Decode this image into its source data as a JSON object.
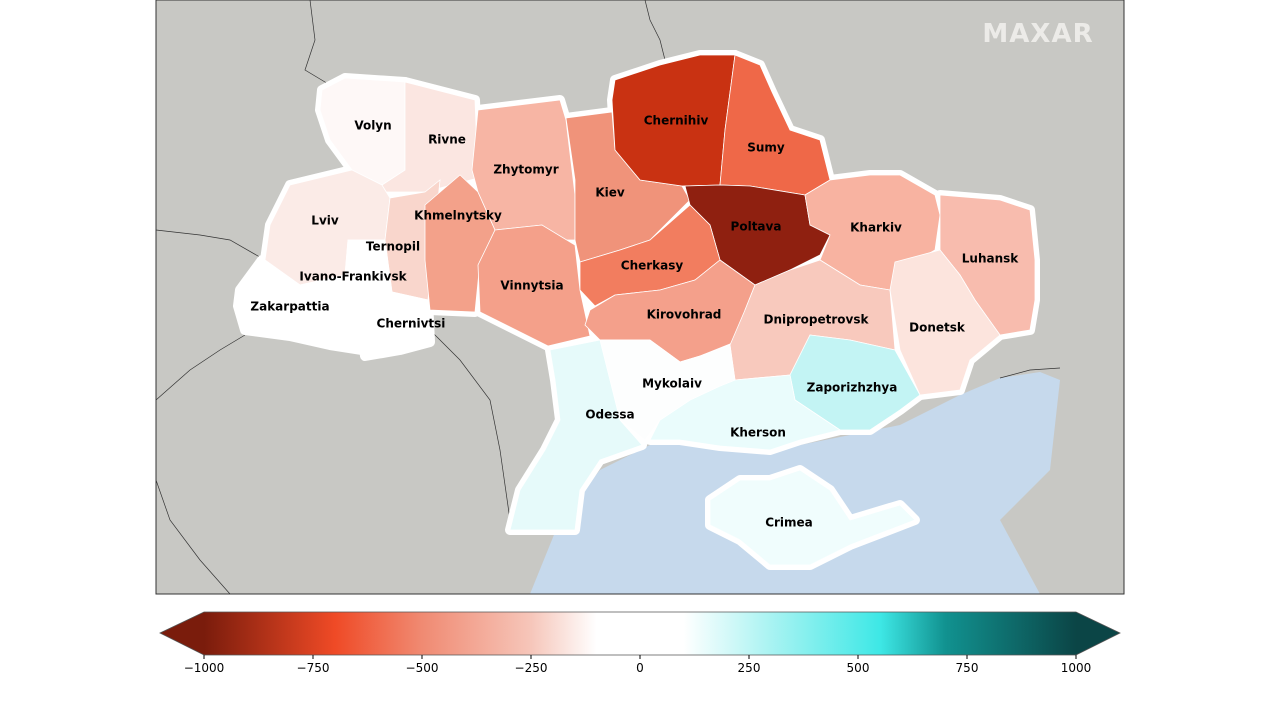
{
  "logo": "MAXAR",
  "colors": {
    "land": "#c8c8c4",
    "sea": "#c6d9ec",
    "border": "#ffffff"
  },
  "regions": [
    {
      "name": "Volyn",
      "value": -40,
      "color": "#fef8f7"
    },
    {
      "name": "Rivne",
      "value": -130,
      "color": "#fbe6e1"
    },
    {
      "name": "Lviv",
      "value": -110,
      "color": "#fbebe7"
    },
    {
      "name": "Ternopil",
      "value": -230,
      "color": "#f9d6cc"
    },
    {
      "name": "Ivano-Frankivsk",
      "value": 0,
      "color": "#ffffff"
    },
    {
      "name": "Zakarpattia",
      "value": 0,
      "color": "#ffffff"
    },
    {
      "name": "Chernivtsi",
      "value": 0,
      "color": "#ffffff"
    },
    {
      "name": "Khmelnytsky",
      "value": -450,
      "color": "#f3a18a"
    },
    {
      "name": "Zhytomyr",
      "value": -380,
      "color": "#f7b5a4"
    },
    {
      "name": "Vinnytsia",
      "value": -450,
      "color": "#f4a08a"
    },
    {
      "name": "Kiev",
      "value": -480,
      "color": "#f0937a"
    },
    {
      "name": "Chernihiv",
      "value": -800,
      "color": "#c93212"
    },
    {
      "name": "Sumy",
      "value": -650,
      "color": "#ef6848"
    },
    {
      "name": "Poltava",
      "value": -950,
      "color": "#8f2010"
    },
    {
      "name": "Cherkasy",
      "value": -550,
      "color": "#f27d5f"
    },
    {
      "name": "Kirovohrad",
      "value": -440,
      "color": "#f4a08b"
    },
    {
      "name": "Kharkiv",
      "value": -380,
      "color": "#f8b3a1"
    },
    {
      "name": "Luhansk",
      "value": -330,
      "color": "#f8bcae"
    },
    {
      "name": "Dnipropetrovsk",
      "value": -280,
      "color": "#f8c9bd"
    },
    {
      "name": "Donetsk",
      "value": -150,
      "color": "#fce4dd"
    },
    {
      "name": "Zaporizhzhya",
      "value": 300,
      "color": "#c3f4f4"
    },
    {
      "name": "Kherson",
      "value": 120,
      "color": "#eafcfc"
    },
    {
      "name": "Mykolaiv",
      "value": 20,
      "color": "#fdfefe"
    },
    {
      "name": "Odessa",
      "value": 150,
      "color": "#e6fafa"
    },
    {
      "name": "Crimea",
      "value": 80,
      "color": "#f0fdfd"
    }
  ],
  "colorbar": {
    "range": [
      -1000,
      1000
    ],
    "ticks": [
      "−1000",
      "−750",
      "−500",
      "−250",
      "0",
      "250",
      "500",
      "750",
      "1000"
    ],
    "extend": "both",
    "stops": [
      {
        "value": -1000,
        "color": "#7a1c0c"
      },
      {
        "value": -700,
        "color": "#ef4a26"
      },
      {
        "value": -500,
        "color": "#f08a72"
      },
      {
        "value": -250,
        "color": "#f6c6ba"
      },
      {
        "value": -100,
        "color": "#ffffff"
      },
      {
        "value": 100,
        "color": "#ffffff"
      },
      {
        "value": 300,
        "color": "#a9f3f2"
      },
      {
        "value": 550,
        "color": "#3ee8e6"
      },
      {
        "value": 700,
        "color": "#119290"
      },
      {
        "value": 1000,
        "color": "#0b4546"
      }
    ]
  }
}
